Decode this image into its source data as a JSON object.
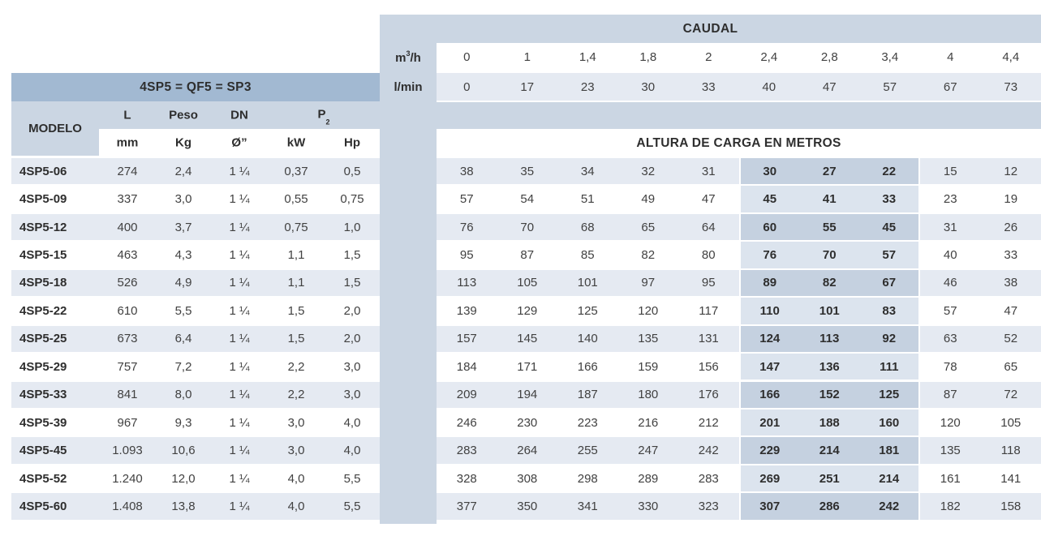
{
  "colors": {
    "band": "#cbd6e3",
    "header_dark": "#a2b9d2",
    "row_stripe": "#e5eaf2",
    "row_white": "#ffffff",
    "highlight_on_stripe": "#c5d1e0",
    "highlight_on_white": "#dce4ee",
    "text_normal": "#414141",
    "text_bold": "#2e2e2e"
  },
  "left_table": {
    "title": "4SP5 = QF5 = SP3",
    "modelo_label": "MODELO",
    "group_headers": {
      "l": "L",
      "peso": "Peso",
      "dn": "DN",
      "p": "P",
      "p_sub": "2"
    },
    "unit_headers": {
      "mm": "mm",
      "kg": "Kg",
      "diam": "Ø”",
      "kw": "kW",
      "hp": "Hp"
    },
    "rows": [
      {
        "model": "4SP5-06",
        "mm": "274",
        "kg": "2,4",
        "dn": "1 ¼",
        "kw": "0,37",
        "hp": "0,5"
      },
      {
        "model": "4SP5-09",
        "mm": "337",
        "kg": "3,0",
        "dn": "1 ¼",
        "kw": "0,55",
        "hp": "0,75"
      },
      {
        "model": "4SP5-12",
        "mm": "400",
        "kg": "3,7",
        "dn": "1 ¼",
        "kw": "0,75",
        "hp": "1,0"
      },
      {
        "model": "4SP5-15",
        "mm": "463",
        "kg": "4,3",
        "dn": "1 ¼",
        "kw": "1,1",
        "hp": "1,5"
      },
      {
        "model": "4SP5-18",
        "mm": "526",
        "kg": "4,9",
        "dn": "1 ¼",
        "kw": "1,1",
        "hp": "1,5"
      },
      {
        "model": "4SP5-22",
        "mm": "610",
        "kg": "5,5",
        "dn": "1 ¼",
        "kw": "1,5",
        "hp": "2,0"
      },
      {
        "model": "4SP5-25",
        "mm": "673",
        "kg": "6,4",
        "dn": "1 ¼",
        "kw": "1,5",
        "hp": "2,0"
      },
      {
        "model": "4SP5-29",
        "mm": "757",
        "kg": "7,2",
        "dn": "1 ¼",
        "kw": "2,2",
        "hp": "3,0"
      },
      {
        "model": "4SP5-33",
        "mm": "841",
        "kg": "8,0",
        "dn": "1 ¼",
        "kw": "2,2",
        "hp": "3,0"
      },
      {
        "model": "4SP5-39",
        "mm": "967",
        "kg": "9,3",
        "dn": "1 ¼",
        "kw": "3,0",
        "hp": "4,0"
      },
      {
        "model": "4SP5-45",
        "mm": "1.093",
        "kg": "10,6",
        "dn": "1 ¼",
        "kw": "3,0",
        "hp": "4,0"
      },
      {
        "model": "4SP5-52",
        "mm": "1.240",
        "kg": "12,0",
        "dn": "1 ¼",
        "kw": "4,0",
        "hp": "5,5"
      },
      {
        "model": "4SP5-60",
        "mm": "1.408",
        "kg": "13,8",
        "dn": "1 ¼",
        "kw": "4,0",
        "hp": "5,5"
      }
    ]
  },
  "right_table": {
    "caudal_title": "CAUDAL",
    "m3h_label": {
      "m": "m",
      "sup": "3",
      "rest": "/h"
    },
    "lmin_label": "l/min",
    "m3h_values": [
      "0",
      "1",
      "1,4",
      "1,8",
      "2",
      "2,4",
      "2,8",
      "3,4",
      "4",
      "4,4"
    ],
    "lmin_values": [
      "0",
      "17",
      "23",
      "30",
      "33",
      "40",
      "47",
      "57",
      "67",
      "73"
    ],
    "altura_title": "ALTURA DE CARGA EN METROS",
    "highlight_columns": [
      5,
      6,
      7
    ],
    "head_rows": [
      [
        "38",
        "35",
        "34",
        "32",
        "31",
        "30",
        "27",
        "22",
        "15",
        "12"
      ],
      [
        "57",
        "54",
        "51",
        "49",
        "47",
        "45",
        "41",
        "33",
        "23",
        "19"
      ],
      [
        "76",
        "70",
        "68",
        "65",
        "64",
        "60",
        "55",
        "45",
        "31",
        "26"
      ],
      [
        "95",
        "87",
        "85",
        "82",
        "80",
        "76",
        "70",
        "57",
        "40",
        "33"
      ],
      [
        "113",
        "105",
        "101",
        "97",
        "95",
        "89",
        "82",
        "67",
        "46",
        "38"
      ],
      [
        "139",
        "129",
        "125",
        "120",
        "117",
        "110",
        "101",
        "83",
        "57",
        "47"
      ],
      [
        "157",
        "145",
        "140",
        "135",
        "131",
        "124",
        "113",
        "92",
        "63",
        "52"
      ],
      [
        "184",
        "171",
        "166",
        "159",
        "156",
        "147",
        "136",
        "111",
        "78",
        "65"
      ],
      [
        "209",
        "194",
        "187",
        "180",
        "176",
        "166",
        "152",
        "125",
        "87",
        "72"
      ],
      [
        "246",
        "230",
        "223",
        "216",
        "212",
        "201",
        "188",
        "160",
        "120",
        "105"
      ],
      [
        "283",
        "264",
        "255",
        "247",
        "242",
        "229",
        "214",
        "181",
        "135",
        "118"
      ],
      [
        "328",
        "308",
        "298",
        "289",
        "283",
        "269",
        "251",
        "214",
        "161",
        "141"
      ],
      [
        "377",
        "350",
        "341",
        "330",
        "323",
        "307",
        "286",
        "242",
        "182",
        "158"
      ]
    ]
  }
}
